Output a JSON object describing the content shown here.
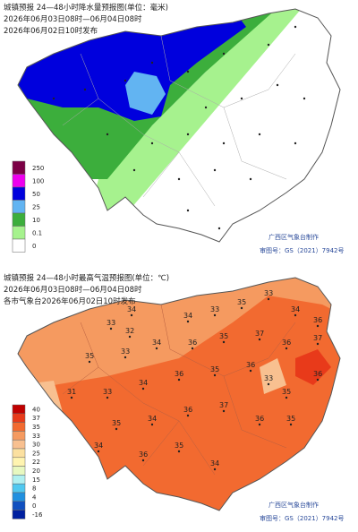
{
  "rain_map": {
    "title": "城镇预报 24—48小时降水量预报图(单位：毫米)",
    "period": "2026年06月03日08时—06月04日08时",
    "issued": "2026年06月02日10时发布",
    "legend": [
      {
        "label": "250",
        "color": "#7b0045"
      },
      {
        "label": "100",
        "color": "#ee00ee"
      },
      {
        "label": "50",
        "color": "#0000dd"
      },
      {
        "label": "25",
        "color": "#62b4f2"
      },
      {
        "label": "10",
        "color": "#3cae3c"
      },
      {
        "label": "0.1",
        "color": "#a6f28e"
      },
      {
        "label": "0",
        "color": "#ffffff"
      }
    ],
    "producer": "广西区气象台制作",
    "map_approval": "审图号：GS（2021）7942号"
  },
  "temperature_map": {
    "title": "城镇预报 24—48小时最高气温预报图(单位：℃)",
    "period": "2026年06月03日08时—06月04日08时",
    "issued": "各市气象台2026年06月02日10时发布",
    "legend": [
      {
        "label": "40",
        "color": "#c00000"
      },
      {
        "label": "37",
        "color": "#e83a1a"
      },
      {
        "label": "35",
        "color": "#f26a30"
      },
      {
        "label": "33",
        "color": "#f59a60"
      },
      {
        "label": "30",
        "color": "#f8c090"
      },
      {
        "label": "25",
        "color": "#fbe0a0"
      },
      {
        "label": "22",
        "color": "#fff4b0"
      },
      {
        "label": "20",
        "color": "#e8f8c0"
      },
      {
        "label": "15",
        "color": "#b0f0f0"
      },
      {
        "label": "8",
        "color": "#50c8f0"
      },
      {
        "label": "4",
        "color": "#2090e0"
      },
      {
        "label": "0",
        "color": "#1050c0"
      },
      {
        "label": "-16",
        "color": "#0020a0"
      }
    ],
    "station_values": [
      34,
      33,
      32,
      34,
      33,
      35,
      33,
      34,
      36,
      35,
      33,
      34,
      36,
      35,
      37,
      36,
      37,
      31,
      33,
      34,
      36,
      35,
      36,
      33,
      35,
      36,
      35,
      34,
      36,
      37,
      36,
      35,
      34,
      36,
      35,
      34
    ],
    "producer": "广西区气象台制作",
    "map_approval": "审图号：GS（2021）7942号"
  }
}
